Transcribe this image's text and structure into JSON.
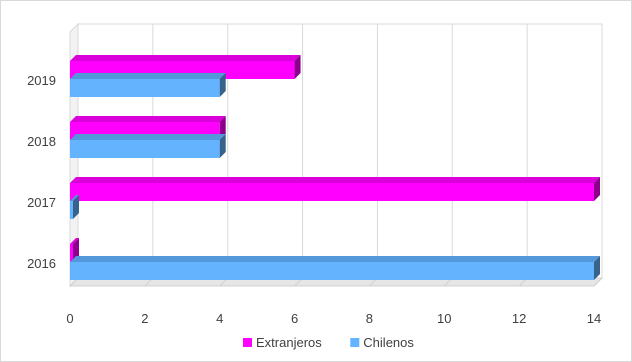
{
  "chart_data": {
    "type": "bar",
    "orientation": "horizontal",
    "style": "3d",
    "categories": [
      "2016",
      "2017",
      "2018",
      "2019"
    ],
    "series": [
      {
        "name": "Chilenos",
        "values": [
          14,
          0,
          4,
          4
        ],
        "color": "#63B3FF"
      },
      {
        "name": "Extranjeros",
        "values": [
          0,
          14,
          4,
          6
        ],
        "color": "#FF00FF"
      }
    ],
    "x_ticks": [
      "0",
      "2",
      "4",
      "6",
      "8",
      "10",
      "12",
      "14"
    ],
    "xlim": [
      0,
      14
    ],
    "grid": true,
    "legend": {
      "position": "bottom",
      "order": [
        "Extranjeros",
        "Chilenos"
      ]
    },
    "title": "",
    "xlabel": "",
    "ylabel": ""
  }
}
